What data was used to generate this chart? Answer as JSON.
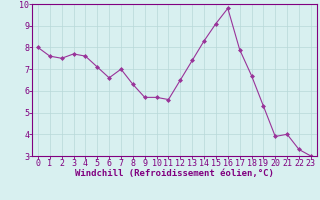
{
  "x": [
    0,
    1,
    2,
    3,
    4,
    5,
    6,
    7,
    8,
    9,
    10,
    11,
    12,
    13,
    14,
    15,
    16,
    17,
    18,
    19,
    20,
    21,
    22,
    23
  ],
  "y": [
    8.0,
    7.6,
    7.5,
    7.7,
    7.6,
    7.1,
    6.6,
    7.0,
    6.3,
    5.7,
    5.7,
    5.6,
    6.5,
    7.4,
    8.3,
    9.1,
    9.8,
    7.9,
    6.7,
    5.3,
    3.9,
    4.0,
    3.3,
    3.0
  ],
  "line_color": "#993399",
  "marker": "D",
  "marker_size": 2,
  "xlabel": "Windchill (Refroidissement éolien,°C)",
  "xlim": [
    -0.5,
    23.5
  ],
  "ylim": [
    3,
    10
  ],
  "yticks": [
    3,
    4,
    5,
    6,
    7,
    8,
    9,
    10
  ],
  "xticks": [
    0,
    1,
    2,
    3,
    4,
    5,
    6,
    7,
    8,
    9,
    10,
    11,
    12,
    13,
    14,
    15,
    16,
    17,
    18,
    19,
    20,
    21,
    22,
    23
  ],
  "bg_color": "#d8f0f0",
  "grid_color": "#b8d8d8",
  "axis_label_color": "#800080",
  "tick_label_color": "#800080",
  "axis_spine_color": "#800080",
  "xlabel_fontsize": 6.5,
  "tick_fontsize": 6
}
